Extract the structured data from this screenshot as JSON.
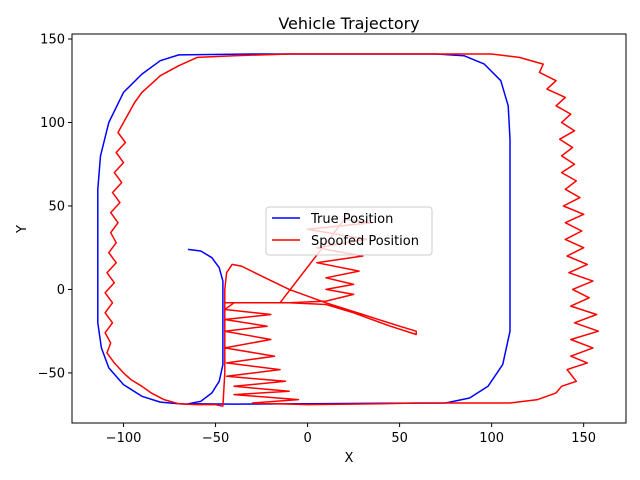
{
  "chart_data": {
    "type": "line",
    "title": "Vehicle Trajectory",
    "xlabel": "X",
    "ylabel": "Y",
    "xlim": [
      -128,
      173
    ],
    "ylim": [
      -80,
      153
    ],
    "xticks": [
      -100,
      -50,
      0,
      50,
      100,
      150
    ],
    "yticks": [
      -50,
      0,
      50,
      100,
      150
    ],
    "grid": false,
    "legend_position": "center",
    "series": [
      {
        "name": "True Position",
        "color": "#0000ff",
        "points": [
          [
            -65,
            24
          ],
          [
            -58,
            23
          ],
          [
            -52,
            19
          ],
          [
            -48,
            13
          ],
          [
            -46,
            5
          ],
          [
            -46,
            -10
          ],
          [
            -46,
            -30
          ],
          [
            -46,
            -45
          ],
          [
            -48,
            -55
          ],
          [
            -52,
            -62
          ],
          [
            -58,
            -67
          ],
          [
            -65,
            -68.5
          ],
          [
            -40,
            -68.7
          ],
          [
            0,
            -68.5
          ],
          [
            40,
            -68.2
          ],
          [
            75,
            -68
          ],
          [
            88,
            -65
          ],
          [
            98,
            -58
          ],
          [
            106,
            -45
          ],
          [
            110,
            -25
          ],
          [
            110,
            0
          ],
          [
            110,
            50
          ],
          [
            110,
            90
          ],
          [
            109,
            110
          ],
          [
            105,
            125
          ],
          [
            96,
            135
          ],
          [
            85,
            140
          ],
          [
            70,
            141
          ],
          [
            20,
            141
          ],
          [
            -30,
            141
          ],
          [
            -70,
            140.5
          ],
          [
            -80,
            137
          ],
          [
            -90,
            129
          ],
          [
            -100,
            118
          ],
          [
            -108,
            100
          ],
          [
            -112.5,
            80
          ],
          [
            -114,
            60
          ],
          [
            -114,
            20
          ],
          [
            -114,
            -20
          ],
          [
            -112,
            -35
          ],
          [
            -108,
            -47
          ],
          [
            -100,
            -57
          ],
          [
            -90,
            -64
          ],
          [
            -80,
            -67.5
          ],
          [
            -70,
            -68.5
          ],
          [
            -65,
            -68.7
          ]
        ]
      },
      {
        "name": "Spoofed Position",
        "color": "#ff0000",
        "points": [
          [
            -46,
            -70
          ],
          [
            -45,
            -50
          ],
          [
            -45,
            -20
          ],
          [
            -45,
            0
          ],
          [
            -44,
            10
          ],
          [
            -41,
            15
          ],
          [
            -36,
            14
          ],
          [
            -25,
            8
          ],
          [
            -10,
            0
          ],
          [
            10,
            -8
          ],
          [
            30,
            -15
          ],
          [
            50,
            -22
          ],
          [
            59,
            -25
          ],
          [
            59,
            -27
          ],
          [
            45,
            -22
          ],
          [
            25,
            -14
          ],
          [
            10,
            -9
          ],
          [
            -10,
            -8
          ],
          [
            -30,
            -8
          ],
          [
            -45,
            -8
          ],
          [
            -30,
            -8
          ],
          [
            -10,
            -8
          ],
          [
            10,
            -7
          ],
          [
            25,
            -3
          ],
          [
            10,
            0
          ],
          [
            25,
            3
          ],
          [
            10,
            7
          ],
          [
            28,
            11
          ],
          [
            5,
            16
          ],
          [
            30,
            20
          ],
          [
            5,
            25
          ],
          [
            32,
            30
          ],
          [
            0,
            36
          ],
          [
            35,
            40
          ],
          [
            20,
            42
          ],
          [
            -15,
            -8
          ],
          [
            -40,
            -8
          ],
          [
            -45,
            -12
          ],
          [
            -20,
            -15
          ],
          [
            -45,
            -18
          ],
          [
            -22,
            -22
          ],
          [
            -45,
            -25
          ],
          [
            -20,
            -30
          ],
          [
            -45,
            -35
          ],
          [
            -18,
            -40
          ],
          [
            -44,
            -44
          ],
          [
            -15,
            -48
          ],
          [
            -44,
            -52
          ],
          [
            -12,
            -55
          ],
          [
            -40,
            -58
          ],
          [
            -10,
            -61
          ],
          [
            -40,
            -63
          ],
          [
            -5,
            -66
          ],
          [
            -30,
            -68
          ],
          [
            0,
            -69
          ],
          [
            40,
            -68.5
          ],
          [
            60,
            -68
          ],
          [
            90,
            -68
          ],
          [
            110,
            -68
          ],
          [
            125,
            -66
          ],
          [
            135,
            -62
          ],
          [
            138,
            -58
          ],
          [
            146,
            -55
          ],
          [
            141,
            -48
          ],
          [
            152,
            -44
          ],
          [
            143,
            -40
          ],
          [
            155,
            -35
          ],
          [
            143,
            -30
          ],
          [
            158,
            -25
          ],
          [
            145,
            -20
          ],
          [
            157,
            -15
          ],
          [
            143,
            -10
          ],
          [
            153,
            -5
          ],
          [
            144,
            0
          ],
          [
            155,
            5
          ],
          [
            142,
            10
          ],
          [
            152,
            15
          ],
          [
            141,
            20
          ],
          [
            150,
            25
          ],
          [
            140,
            30
          ],
          [
            149,
            35
          ],
          [
            140,
            40
          ],
          [
            150,
            45
          ],
          [
            139,
            50
          ],
          [
            148,
            55
          ],
          [
            140,
            60
          ],
          [
            146,
            65
          ],
          [
            138,
            70
          ],
          [
            145,
            75
          ],
          [
            138,
            80
          ],
          [
            144,
            85
          ],
          [
            137,
            90
          ],
          [
            145,
            95
          ],
          [
            138,
            100
          ],
          [
            143,
            105
          ],
          [
            135,
            110
          ],
          [
            140,
            115
          ],
          [
            130,
            120
          ],
          [
            135,
            125
          ],
          [
            126,
            130
          ],
          [
            128,
            135
          ],
          [
            115,
            139
          ],
          [
            100,
            141
          ],
          [
            60,
            141
          ],
          [
            20,
            141
          ],
          [
            -10,
            141
          ],
          [
            -40,
            140
          ],
          [
            -60,
            139
          ],
          [
            -70,
            134
          ],
          [
            -80,
            128
          ],
          [
            -84,
            124
          ],
          [
            -90,
            118
          ],
          [
            -94,
            112
          ],
          [
            -97,
            106
          ],
          [
            -100,
            100
          ],
          [
            -103,
            94
          ],
          [
            -99,
            88
          ],
          [
            -104,
            82
          ],
          [
            -100,
            76
          ],
          [
            -105,
            70
          ],
          [
            -101,
            64
          ],
          [
            -106,
            58
          ],
          [
            -102,
            52
          ],
          [
            -107,
            46
          ],
          [
            -103,
            40
          ],
          [
            -107,
            34
          ],
          [
            -104,
            28
          ],
          [
            -108,
            22
          ],
          [
            -104,
            16
          ],
          [
            -109,
            10
          ],
          [
            -105,
            4
          ],
          [
            -110,
            -2
          ],
          [
            -106,
            -8
          ],
          [
            -110,
            -14
          ],
          [
            -106,
            -20
          ],
          [
            -110,
            -26
          ],
          [
            -107,
            -32
          ],
          [
            -109,
            -38
          ],
          [
            -105,
            -44
          ],
          [
            -100,
            -50
          ],
          [
            -96,
            -54
          ],
          [
            -90,
            -58
          ],
          [
            -85,
            -62
          ],
          [
            -78,
            -66
          ],
          [
            -70,
            -68.5
          ],
          [
            -60,
            -69
          ],
          [
            -50,
            -69
          ],
          [
            -46,
            -70
          ]
        ]
      }
    ]
  }
}
